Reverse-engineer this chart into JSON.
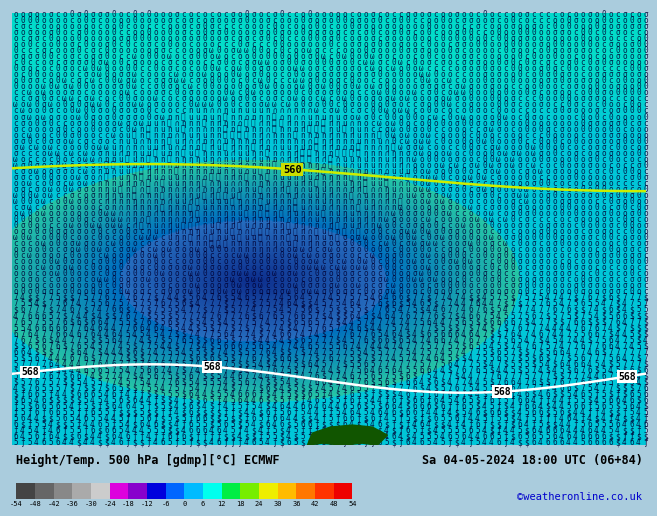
{
  "title_left": "Height/Temp. 500 hPa [gdmp][°C] ECMWF",
  "title_right": "Sa 04-05-2024 18:00 UTC (06+84)",
  "copyright": "©weatheronline.co.uk",
  "colorbar_levels": [
    -54,
    -48,
    -42,
    -36,
    -30,
    -24,
    -18,
    -12,
    -6,
    0,
    6,
    12,
    18,
    24,
    30,
    36,
    42,
    48,
    54
  ],
  "colorbar_colors": [
    "#444444",
    "#666666",
    "#888888",
    "#aaaaaa",
    "#cccccc",
    "#dd00dd",
    "#8800cc",
    "#0000dd",
    "#0066ff",
    "#00bbff",
    "#00ffee",
    "#00ee44",
    "#77ee00",
    "#eeee00",
    "#ffbb00",
    "#ff7700",
    "#ff3300",
    "#ee0000",
    "#bb0000"
  ],
  "bg_colors": {
    "dark_blue_center": "#1a3a8a",
    "medium_blue": "#2255bb",
    "light_blue": "#44aadd",
    "cyan": "#00ccee",
    "teal_cyan": "#00ddcc",
    "bright_cyan": "#00eedd"
  },
  "contour_560_color": "#ccee00",
  "contour_568_color": "#ffffff",
  "label_560_bg": "#ccdd00",
  "label_568_bg": "#ffffff",
  "text_color_main": "#000000",
  "text_color_right": "#000000",
  "text_color_copyright": "#0000cc",
  "bottom_bar_color": "#ccddee"
}
